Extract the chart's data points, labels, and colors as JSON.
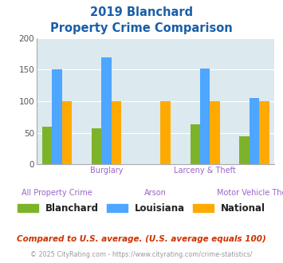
{
  "title_line1": "2019 Blanchard",
  "title_line2": "Property Crime Comparison",
  "categories": [
    "All Property Crime",
    "Burglary",
    "Arson",
    "Larceny & Theft",
    "Motor Vehicle Theft"
  ],
  "series": {
    "Blanchard": [
      60,
      57,
      0,
      63,
      45
    ],
    "Louisiana": [
      150,
      170,
      0,
      152,
      105
    ],
    "National": [
      100,
      100,
      100,
      100,
      100
    ]
  },
  "colors": {
    "Blanchard": "#7db32a",
    "Louisiana": "#4da6ff",
    "National": "#ffaa00"
  },
  "ylim": [
    0,
    200
  ],
  "yticks": [
    0,
    50,
    100,
    150,
    200
  ],
  "background_color": "#dce9ee",
  "title_color": "#1a5fa8",
  "xlabel_color": "#9966cc",
  "footer_text": "Compared to U.S. average. (U.S. average equals 100)",
  "copyright_text": "© 2025 CityRating.com - https://www.cityrating.com/crime-statistics/",
  "footer_color": "#cc3300",
  "copyright_color": "#999999",
  "bar_width": 0.22
}
